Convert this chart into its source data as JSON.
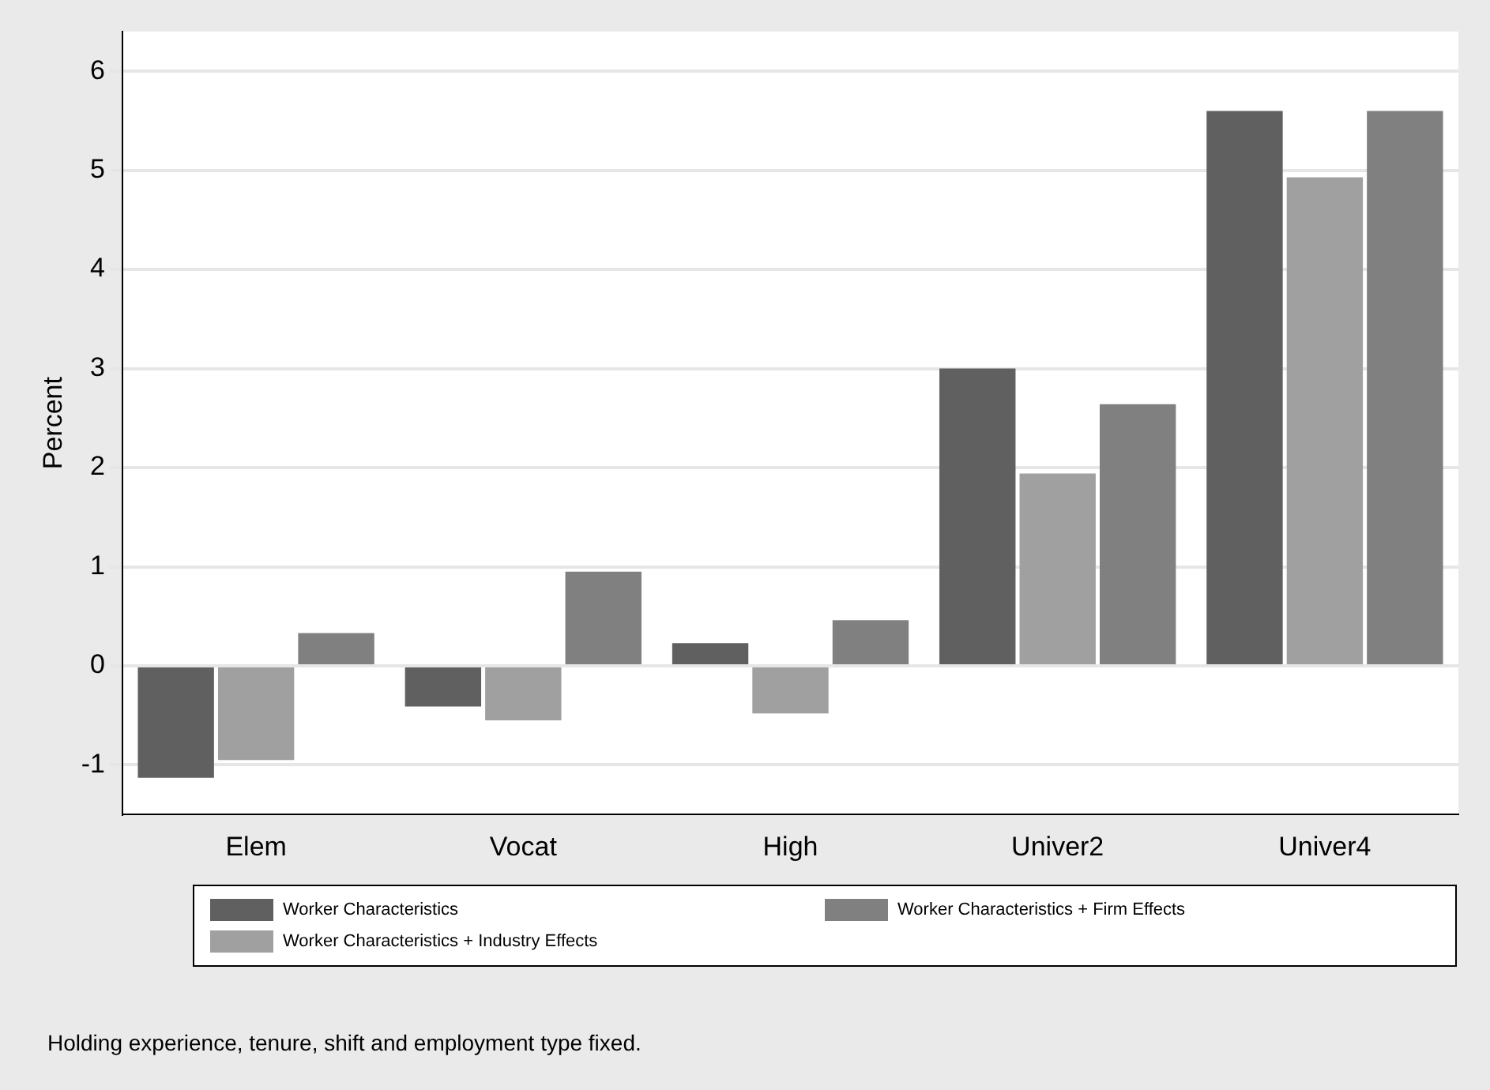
{
  "chart_data": {
    "type": "bar",
    "categories": [
      "Elem",
      "Vocat",
      "High",
      "Univer2",
      "Univer4"
    ],
    "series": [
      {
        "name": "Worker Characteristics",
        "color": "#606060",
        "values": [
          -1.13,
          -0.41,
          0.23,
          3.0,
          5.6
        ]
      },
      {
        "name": "Worker Characteristics + Industry Effects",
        "color": "#a0a0a0",
        "values": [
          -0.95,
          -0.55,
          -0.48,
          1.94,
          4.93
        ]
      },
      {
        "name": "Worker Characteristics + Firm Effects",
        "color": "#808080",
        "values": [
          0.33,
          0.95,
          0.46,
          2.64,
          5.6
        ]
      }
    ],
    "ylabel": "Percent",
    "ylim": [
      -1.5,
      6.4
    ],
    "yticks": [
      -1,
      0,
      1,
      2,
      3,
      4,
      5,
      6
    ],
    "grid": "y",
    "legend": "bottom",
    "annotations": [
      "Holding experience, tenure, shift and employment type fixed."
    ]
  }
}
